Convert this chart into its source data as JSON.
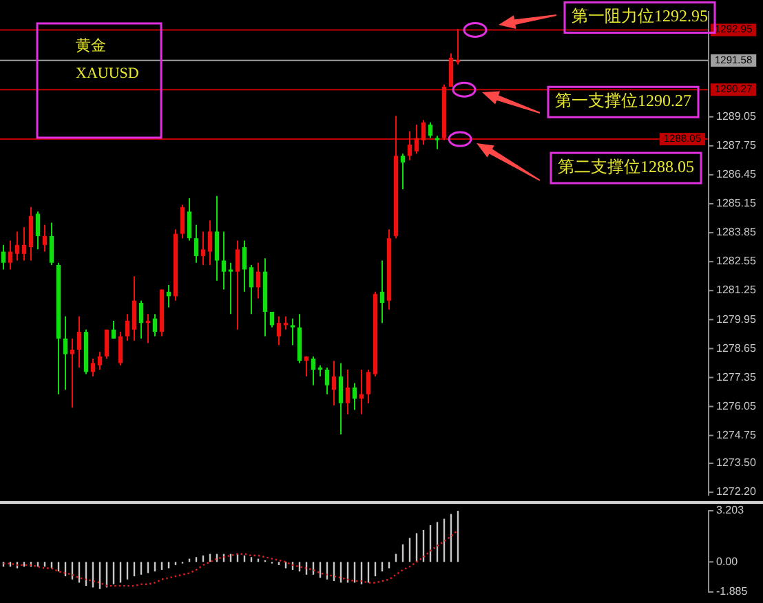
{
  "chart_data": [
    {
      "type": "candlestick",
      "categories": [
        null,
        null,
        null,
        null,
        null,
        null,
        null,
        null,
        null,
        null,
        null,
        null,
        null,
        null,
        null,
        null,
        null,
        null,
        null,
        null,
        null,
        null,
        null,
        null,
        null,
        null,
        null,
        null,
        null,
        null,
        null,
        null,
        null,
        null,
        null,
        null,
        null,
        null,
        null,
        null,
        null,
        null,
        null,
        null,
        null,
        null,
        null,
        null,
        null,
        null,
        null,
        null,
        null,
        null,
        null,
        null,
        null,
        null,
        null,
        null,
        null,
        null,
        null,
        null,
        null,
        null,
        null,
        null,
        null,
        null,
        null,
        null,
        null,
        null,
        null,
        null,
        null,
        null,
        null,
        null,
        null,
        null,
        null,
        null,
        null,
        null,
        null,
        null,
        null,
        null,
        null,
        null,
        null,
        null,
        null,
        null,
        null,
        null,
        null,
        null
      ],
      "ohlc": [
        [
          1283.0,
          1283.3,
          1282.2,
          1282.5
        ],
        [
          1282.5,
          1283.5,
          1282.2,
          1283.0
        ],
        [
          1282.9,
          1283.9,
          1282.6,
          1283.3
        ],
        [
          1282.9,
          1284.1,
          1282.6,
          1283.3
        ],
        [
          1283.2,
          1285.0,
          1282.6,
          1284.6
        ],
        [
          1284.7,
          1284.8,
          1283.1,
          1283.7
        ],
        [
          1283.3,
          1284.2,
          1283.0,
          1283.7
        ],
        [
          1283.7,
          1284.3,
          1282.4,
          1282.5
        ],
        [
          1282.4,
          1282.5,
          1276.6,
          1279.1
        ],
        [
          1279.1,
          1280.1,
          1276.8,
          1278.4
        ],
        [
          1278.4,
          1279.1,
          1276.0,
          1278.6
        ],
        [
          1278.6,
          1280.1,
          1277.8,
          1279.4
        ],
        [
          1279.4,
          1279.5,
          1277.5,
          1277.6
        ],
        [
          1277.6,
          1278.2,
          1277.4,
          1278.0
        ],
        [
          1277.9,
          1278.5,
          1277.7,
          1278.3
        ],
        [
          1278.3,
          1279.5,
          1278.2,
          1279.5
        ],
        [
          1279.5,
          1279.9,
          1279.1,
          1279.1
        ],
        [
          1278.0,
          1279.4,
          1277.9,
          1279.2
        ],
        [
          1279.2,
          1280.2,
          1279.0,
          1279.9
        ],
        [
          1279.5,
          1281.9,
          1279.0,
          1280.8
        ],
        [
          1280.7,
          1280.8,
          1279.1,
          1279.8
        ],
        [
          1279.8,
          1280.2,
          1278.9,
          1279.9
        ],
        [
          1280.0,
          1280.2,
          1279.2,
          1279.4
        ],
        [
          1279.4,
          1281.3,
          1279.2,
          1281.3
        ],
        [
          1281.2,
          1281.5,
          1280.5,
          1281.0
        ],
        [
          1281.0,
          1284.0,
          1280.8,
          1283.8
        ],
        [
          1283.8,
          1285.1,
          1283.6,
          1285.0
        ],
        [
          1284.8,
          1285.4,
          1283.5,
          1283.6
        ],
        [
          1283.6,
          1284.2,
          1282.5,
          1282.8
        ],
        [
          1282.8,
          1283.9,
          1282.4,
          1283.1
        ],
        [
          1283.0,
          1284.4,
          1282.4,
          1283.9
        ],
        [
          1283.9,
          1285.5,
          1281.7,
          1282.6
        ],
        [
          1282.6,
          1283.9,
          1281.3,
          1282.1
        ],
        [
          1282.2,
          1282.5,
          1280.2,
          1282.1
        ],
        [
          1282.1,
          1283.5,
          1279.5,
          1283.1
        ],
        [
          1283.2,
          1283.5,
          1281.2,
          1282.2
        ],
        [
          1282.3,
          1282.4,
          1280.2,
          1281.4
        ],
        [
          1281.4,
          1282.5,
          1280.9,
          1282.1
        ],
        [
          1282.1,
          1282.7,
          1279.2,
          1280.3
        ],
        [
          1280.3,
          1280.3,
          1279.6,
          1279.7
        ],
        [
          1279.2,
          1280.1,
          1278.8,
          1279.8
        ],
        [
          1279.7,
          1280.1,
          1279.5,
          1279.8
        ],
        [
          1279.7,
          1280.0,
          1278.8,
          1279.6
        ],
        [
          1279.6,
          1280.2,
          1278.0,
          1278.1
        ],
        [
          1278.1,
          1278.3,
          1277.4,
          1278.3
        ],
        [
          1278.2,
          1278.3,
          1277.0,
          1277.7
        ],
        [
          1277.8,
          1277.9,
          1277.4,
          1277.7
        ],
        [
          1277.7,
          1277.8,
          1276.6,
          1277.0
        ],
        [
          1276.8,
          1278.1,
          1276.1,
          1277.4
        ],
        [
          1277.4,
          1278.0,
          1274.8,
          1276.2
        ],
        [
          1276.2,
          1277.7,
          1275.7,
          1276.9
        ],
        [
          1276.9,
          1277.1,
          1275.9,
          1276.4
        ],
        [
          1276.4,
          1277.7,
          1275.7,
          1276.6
        ],
        [
          1276.6,
          1277.7,
          1276.2,
          1277.6
        ],
        [
          1277.5,
          1281.2,
          1277.4,
          1281.1
        ],
        [
          1281.2,
          1282.6,
          1279.8,
          1280.7
        ],
        [
          1280.8,
          1284.0,
          1280.4,
          1283.6
        ],
        [
          1283.7,
          1289.1,
          1283.6,
          1287.3
        ],
        [
          1287.3,
          1287.4,
          1285.8,
          1287.0
        ],
        [
          1287.3,
          1288.4,
          1287.1,
          1287.8
        ],
        [
          1287.5,
          1288.7,
          1287.4,
          1288.1
        ],
        [
          1288.0,
          1288.9,
          1287.8,
          1288.8
        ],
        [
          1288.7,
          1288.8,
          1288.1,
          1288.2
        ],
        [
          1288.1,
          1288.2,
          1287.6,
          1288.0
        ],
        [
          1288.1,
          1290.5,
          1288.0,
          1290.4
        ],
        [
          1290.4,
          1291.9,
          1290.4,
          1291.7
        ],
        [
          1291.5,
          1293.0,
          1291.4,
          1291.6
        ],
        null,
        null,
        null,
        null,
        null,
        null,
        null,
        null,
        null,
        null,
        null,
        null,
        null,
        null,
        null,
        null,
        null,
        null,
        null,
        null,
        null,
        null,
        null,
        null,
        null,
        null,
        null,
        null,
        null,
        null,
        null,
        null,
        null
      ],
      "colors": [
        "#10e010",
        "#f01010",
        "#f01010",
        "#f01010",
        "#f01010",
        "#10e010",
        "#f01010",
        "#10e010",
        "#10e010",
        "#10e010",
        "#f01010",
        "#f01010",
        "#10e010",
        "#f01010",
        "#f01010",
        "#f01010",
        "#10e010",
        "#f01010",
        "#f01010",
        "#f01010",
        "#10e010",
        "#f01010",
        "#10e010",
        "#f01010",
        "#10e010",
        "#f01010",
        "#f01010",
        "#10e010",
        "#10e010",
        "#f01010",
        "#f01010",
        "#10e010",
        "#10e010",
        "#10e010",
        "#f01010",
        "#10e010",
        "#10e010",
        "#f01010",
        "#10e010",
        "#10e010",
        "#f01010",
        "#f01010",
        "#10e010",
        "#10e010",
        "#f01010",
        "#10e010",
        "#10e010",
        "#10e010",
        "#f01010",
        "#10e010",
        "#f01010",
        "#10e010",
        "#f01010",
        "#f01010",
        "#f01010",
        "#10e010",
        "#f01010",
        "#f01010",
        "#10e010",
        "#f01010",
        "#f01010",
        "#f01010",
        "#10e010",
        "#10e010",
        "#f01010",
        "#f01010",
        "#f01010",
        null,
        null,
        null,
        null,
        null,
        null,
        null,
        null,
        null,
        null,
        null,
        null,
        null,
        null,
        null,
        null,
        null,
        null,
        null,
        null,
        null,
        null,
        null,
        null,
        null,
        null,
        null,
        null,
        null,
        null,
        null,
        null,
        null
      ],
      "ylim": [
        1272.05,
        1293.8
      ],
      "yticks": [
        {
          "value": 1272.2,
          "label": "1272.20"
        },
        {
          "value": 1273.5,
          "label": "1273.50"
        },
        {
          "value": 1274.75,
          "label": "1274.75"
        },
        {
          "value": 1276.05,
          "label": "1276.05"
        },
        {
          "value": 1277.35,
          "label": "1277.35"
        },
        {
          "value": 1278.65,
          "label": "1278.65"
        },
        {
          "value": 1279.95,
          "label": "1279.95"
        },
        {
          "value": 1281.25,
          "label": "1281.25"
        },
        {
          "value": 1282.55,
          "label": "1282.55"
        },
        {
          "value": 1283.85,
          "label": "1283.85"
        },
        {
          "value": 1285.15,
          "label": "1285.15"
        },
        {
          "value": 1286.45,
          "label": "1286.45"
        },
        {
          "value": 1287.75,
          "label": "1287.75"
        },
        {
          "value": 1289.05,
          "label": "1289.05"
        }
      ],
      "ref_lines": [
        {
          "axis": "y",
          "value": 1292.95,
          "label": "1292.95",
          "color": "#c00000"
        },
        {
          "axis": "y",
          "value": 1291.58,
          "label": "1291.58",
          "color": "#a0a0a0"
        },
        {
          "axis": "y",
          "value": 1290.27,
          "label": "1290.27",
          "color": "#c00000"
        },
        {
          "axis": "y",
          "value": 1288.05,
          "label": "1288.05",
          "color": "#c00000"
        }
      ],
      "annotations": [
        {
          "text": "第一阻力位1292.95",
          "y": 1292.95
        },
        {
          "text": "第一支撑位1290.27",
          "y": 1290.27
        },
        {
          "text": "第二支撑位1288.05",
          "y": 1288.05
        },
        "黄金",
        "XAUUSD"
      ]
    },
    {
      "type": "bar",
      "categories": [
        null,
        null,
        null,
        null,
        null,
        null,
        null,
        null,
        null,
        null,
        null,
        null,
        null,
        null,
        null,
        null,
        null,
        null,
        null,
        null,
        null,
        null,
        null,
        null,
        null,
        null,
        null,
        null,
        null,
        null,
        null,
        null,
        null,
        null,
        null,
        null,
        null,
        null,
        null,
        null,
        null,
        null,
        null,
        null,
        null,
        null,
        null,
        null,
        null,
        null,
        null,
        null,
        null,
        null,
        null,
        null,
        null,
        null,
        null,
        null,
        null,
        null,
        null,
        null,
        null,
        null,
        null,
        null,
        null,
        null,
        null,
        null,
        null,
        null,
        null,
        null,
        null,
        null,
        null,
        null,
        null,
        null,
        null,
        null,
        null,
        null,
        null,
        null,
        null,
        null,
        null,
        null,
        null,
        null,
        null,
        null,
        null,
        null,
        null,
        null
      ],
      "ylim": [
        -1.885,
        3.203
      ],
      "yticks": [
        {
          "value": 3.203,
          "label": "3.203"
        },
        {
          "value": 0,
          "label": "0.00"
        },
        {
          "value": -1.885,
          "label": "-1.885"
        }
      ],
      "series": [
        {
          "type": "bar",
          "color": "#c8c8c8",
          "values": [
            -0.3,
            -0.3,
            -0.4,
            -0.3,
            -0.3,
            -0.3,
            -0.3,
            -0.4,
            -0.6,
            -0.9,
            -1.1,
            -1.3,
            -1.5,
            -1.6,
            -1.7,
            -1.6,
            -1.4,
            -1.3,
            -1.1,
            -0.9,
            -0.8,
            -0.7,
            -0.6,
            -0.5,
            -0.4,
            -0.2,
            -0.1,
            0.2,
            0.3,
            0.4,
            0.5,
            0.5,
            0.5,
            0.5,
            0.5,
            0.4,
            0.3,
            0.2,
            0.1,
            -0.1,
            -0.2,
            -0.4,
            -0.5,
            -0.6,
            -0.8,
            -0.8,
            -1.0,
            -1.1,
            -1.2,
            -1.3,
            -1.3,
            -1.3,
            -1.4,
            -1.3,
            -0.9,
            -0.6,
            -0.4,
            0.5,
            1.1,
            1.5,
            1.8,
            2.0,
            2.3,
            2.5,
            2.7,
            3.0,
            3.2,
            null,
            null,
            null,
            null,
            null,
            null,
            null,
            null,
            null,
            null,
            null,
            null,
            null,
            null,
            null,
            null,
            null,
            null,
            null,
            null,
            null,
            null,
            null,
            null,
            null,
            null,
            null,
            null,
            null,
            null,
            null,
            null,
            null
          ]
        },
        {
          "type": "line",
          "color": "#e02020",
          "line_style": "dotted",
          "values": [
            -0.1,
            -0.1,
            -0.2,
            -0.2,
            -0.2,
            -0.3,
            -0.4,
            -0.4,
            -0.6,
            -0.7,
            -0.8,
            -1.0,
            -1.1,
            -1.2,
            -1.3,
            -1.5,
            -1.5,
            -1.5,
            -1.5,
            -1.5,
            -1.4,
            -1.4,
            -1.3,
            -1.1,
            -1.0,
            -0.9,
            -0.8,
            -0.7,
            -0.5,
            -0.2,
            0.0,
            0.2,
            0.3,
            0.4,
            0.5,
            0.5,
            0.4,
            0.4,
            0.3,
            0.2,
            0.1,
            0.0,
            -0.2,
            -0.3,
            -0.4,
            -0.5,
            -0.7,
            -0.8,
            -0.9,
            -1.0,
            -1.1,
            -1.2,
            -1.2,
            -1.3,
            -1.3,
            -1.2,
            -1.1,
            -0.8,
            -0.5,
            -0.3,
            0.0,
            0.3,
            0.7,
            1.0,
            1.3,
            1.6,
            2.0,
            null,
            null,
            null,
            null,
            null,
            null,
            null,
            null,
            null,
            null,
            null,
            null,
            null,
            null,
            null,
            null,
            null,
            null,
            null,
            null,
            null,
            null,
            null,
            null,
            null,
            null,
            null,
            null,
            null,
            null,
            null,
            null,
            null
          ]
        }
      ]
    }
  ]
}
